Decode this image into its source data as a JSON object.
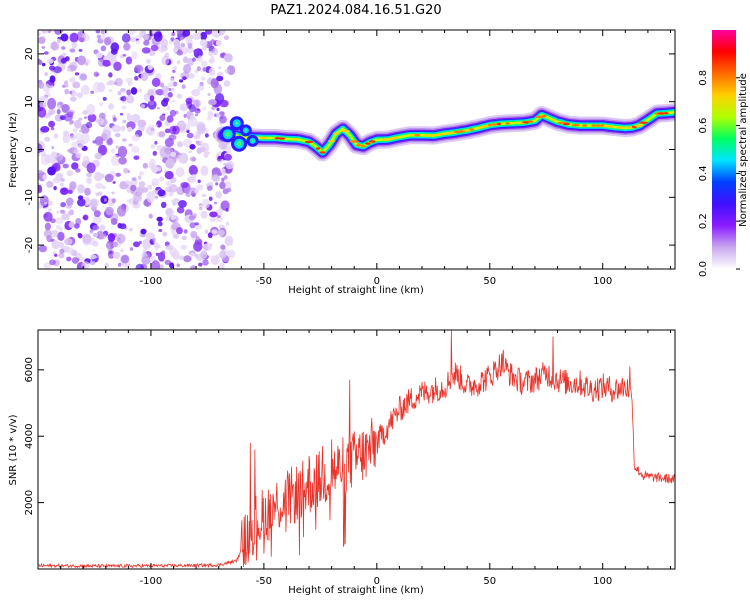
{
  "figure_title": "PAZ1.2024.084.16.51.G20",
  "chart_data": [
    {
      "type": "heatmap",
      "title": "",
      "xlabel": "Height of straight line (km)",
      "ylabel": "Frequency (Hz)",
      "xlim": [
        -150,
        132
      ],
      "ylim": [
        -25,
        25
      ],
      "xticks": [
        -100,
        -50,
        0,
        50,
        100
      ],
      "yticks": [
        -20,
        -10,
        0,
        10,
        20
      ],
      "xtick_labels": [
        "-100",
        "-50",
        "0",
        "50",
        "100"
      ],
      "ytick_labels": [
        "-20",
        "-10",
        "0",
        "10",
        "20"
      ],
      "noise_region_x": [
        -150,
        -68
      ],
      "ridge": {
        "x": [
          -68,
          -64,
          -60,
          -55,
          -50,
          -45,
          -40,
          -35,
          -30,
          -27,
          -24,
          -21,
          -18,
          -15,
          -12,
          -9,
          -6,
          -3,
          0,
          5,
          10,
          15,
          20,
          25,
          30,
          35,
          40,
          45,
          50,
          55,
          60,
          65,
          70,
          73,
          76,
          80,
          85,
          90,
          95,
          100,
          105,
          110,
          113,
          116,
          120,
          124,
          128,
          132
        ],
        "y": [
          3,
          3.2,
          2.6,
          2.5,
          2.4,
          2.4,
          2.2,
          2.1,
          1.6,
          0.6,
          -0.6,
          1.0,
          3.3,
          4.3,
          3.0,
          1.0,
          0.7,
          1.5,
          2.0,
          2.1,
          2.6,
          3.0,
          3.0,
          2.9,
          3.3,
          3.6,
          4.0,
          4.5,
          5.1,
          5.4,
          5.5,
          5.6,
          6.0,
          7.2,
          6.6,
          5.8,
          5.2,
          5.0,
          5.0,
          5.0,
          4.7,
          4.5,
          4.6,
          5.0,
          6.2,
          7.5,
          7.6,
          7.8
        ]
      },
      "colorbar": {
        "label": "Normalized spectral amplitude",
        "range": [
          0,
          1
        ],
        "ticks": [
          0.0,
          0.2,
          0.4,
          0.6,
          0.8
        ],
        "tick_labels": [
          "0.0",
          "0.2",
          "0.4",
          "0.6",
          "0.8"
        ],
        "colors": [
          "#ffffff",
          "#c9a8ee",
          "#8a1bff",
          "#4010ff",
          "#0040ff",
          "#00e5ff",
          "#00ff60",
          "#b0ff00",
          "#ffd000",
          "#ff6a00",
          "#ff0000",
          "#ff00a0"
        ]
      }
    },
    {
      "type": "line",
      "title": "",
      "xlabel": "Height of straight line (km)",
      "ylabel": "SNR (10 * v/v)",
      "xlim": [
        -150,
        132
      ],
      "ylim": [
        0,
        7200
      ],
      "xticks": [
        -100,
        -50,
        0,
        50,
        100
      ],
      "yticks": [
        2000,
        4000,
        6000
      ],
      "xtick_labels": [
        "-100",
        "-50",
        "0",
        "50",
        "100"
      ],
      "ytick_labels": [
        "2000",
        "4000",
        "6000"
      ],
      "color": "#e8332a",
      "envelope": {
        "x": [
          -150,
          -120,
          -90,
          -70,
          -62,
          -58,
          -55,
          -50,
          -45,
          -40,
          -35,
          -30,
          -25,
          -20,
          -15,
          -10,
          -5,
          0,
          5,
          10,
          15,
          20,
          25,
          30,
          35,
          40,
          45,
          50,
          55,
          60,
          65,
          70,
          75,
          80,
          85,
          90,
          95,
          100,
          105,
          110,
          112,
          113,
          114,
          118,
          124,
          132
        ],
        "y": [
          100,
          90,
          100,
          120,
          250,
          900,
          1300,
          1600,
          1900,
          2100,
          2300,
          2500,
          2700,
          2900,
          3100,
          3300,
          3500,
          3800,
          4300,
          4800,
          5100,
          5300,
          5400,
          5500,
          5900,
          5500,
          5600,
          5800,
          6200,
          5800,
          5600,
          5700,
          5900,
          5700,
          5600,
          5600,
          5400,
          5500,
          5400,
          5500,
          5400,
          5200,
          3100,
          2800,
          2750,
          2700
        ]
      },
      "peaks": [
        {
          "x": -56,
          "y": 3800
        },
        {
          "x": -54,
          "y": 3600
        },
        {
          "x": -30,
          "y": 3400
        },
        {
          "x": -24,
          "y": 3700
        },
        {
          "x": -20,
          "y": 3900
        },
        {
          "x": -12,
          "y": 5700
        },
        {
          "x": 33,
          "y": 7200
        },
        {
          "x": 56,
          "y": 6600
        },
        {
          "x": 78,
          "y": 7000
        },
        {
          "x": 112,
          "y": 6100
        }
      ]
    }
  ]
}
